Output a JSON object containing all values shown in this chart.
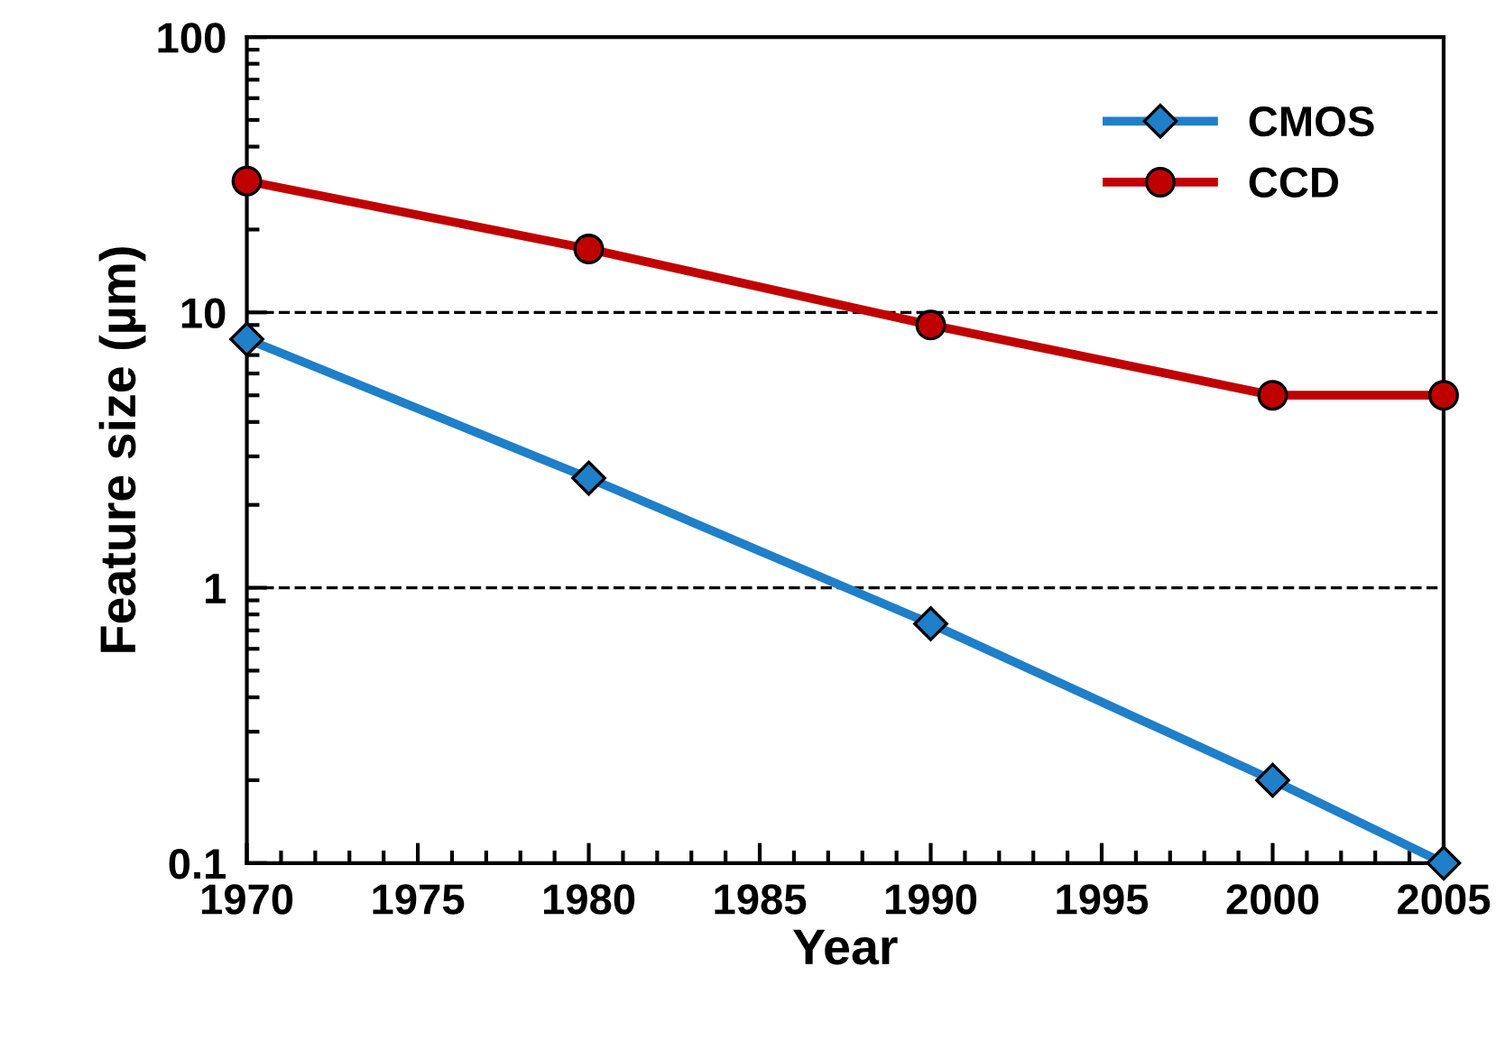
{
  "chart_data": {
    "type": "line",
    "xlabel": "Year",
    "ylabel": "Feature size (µm)",
    "log": "y",
    "grid": "y",
    "legend": "top right",
    "x": [
      1970,
      1980,
      1990,
      2000,
      2005
    ],
    "series": [
      {
        "name": "CMOS",
        "color": "#1f7fc8",
        "marker": "diamond",
        "values": [
          8,
          2.5,
          0.74,
          0.2,
          0.1
        ]
      },
      {
        "name": "CCD",
        "color": "#c00000",
        "marker": "circle",
        "values": [
          30,
          17,
          9,
          5,
          5
        ]
      }
    ],
    "xlim": [
      1970,
      2005
    ],
    "xticks": [
      1970,
      1975,
      1980,
      1985,
      1990,
      1995,
      2000,
      2005
    ],
    "ylim": [
      0.1,
      100
    ],
    "yticks": [
      0.1,
      1,
      10,
      100
    ]
  }
}
